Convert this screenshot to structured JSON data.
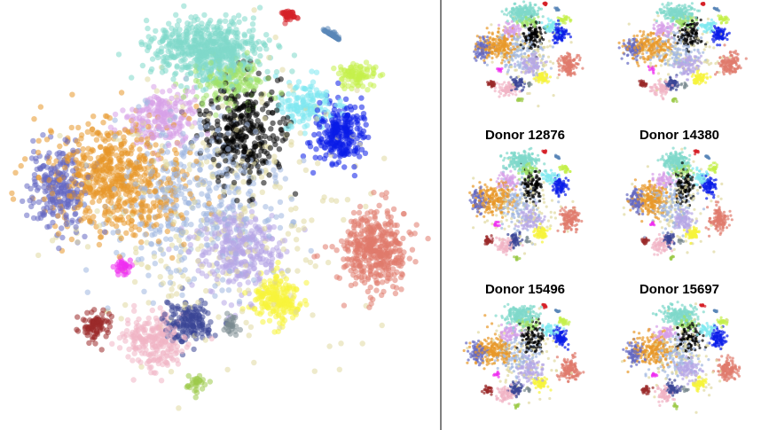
{
  "chart_data": [
    {
      "type": "scatter",
      "title": "",
      "xlabel": "",
      "ylabel": "",
      "grid": false,
      "legend": "none",
      "description_of_marks": "t-SNE style embedding of all cells, colored by cluster",
      "clusters": [
        {
          "color": "#7fd8cb",
          "center": [
            0.47,
            0.12
          ],
          "spread": [
            0.12,
            0.07
          ],
          "n": 600
        },
        {
          "color": "#e8982a",
          "center": [
            0.25,
            0.43
          ],
          "spread": [
            0.15,
            0.12
          ],
          "n": 650
        },
        {
          "color": "#e07a6c",
          "center": [
            0.86,
            0.6
          ],
          "spread": [
            0.07,
            0.09
          ],
          "n": 420
        },
        {
          "color": "#0a1ce8",
          "center": [
            0.78,
            0.32
          ],
          "spread": [
            0.05,
            0.07
          ],
          "n": 260
        },
        {
          "color": "#000000",
          "center": [
            0.55,
            0.32
          ],
          "spread": [
            0.08,
            0.12
          ],
          "n": 330
        },
        {
          "color": "#f7f43a",
          "center": [
            0.63,
            0.72
          ],
          "spread": [
            0.05,
            0.05
          ],
          "n": 200
        },
        {
          "color": "#b6a6e6",
          "center": [
            0.54,
            0.6
          ],
          "spread": [
            0.09,
            0.09
          ],
          "n": 320
        },
        {
          "color": "#f1b4c4",
          "center": [
            0.34,
            0.82
          ],
          "spread": [
            0.07,
            0.06
          ],
          "n": 220
        },
        {
          "color": "#3a4596",
          "center": [
            0.42,
            0.77
          ],
          "spread": [
            0.05,
            0.05
          ],
          "n": 170
        },
        {
          "color": "#9a2a2a",
          "center": [
            0.2,
            0.78
          ],
          "spread": [
            0.03,
            0.03
          ],
          "n": 90
        },
        {
          "color": "#d62128",
          "center": [
            0.66,
            0.03
          ],
          "spread": [
            0.015,
            0.02
          ],
          "n": 45
        },
        {
          "color": "#5a86b8",
          "center": [
            0.77,
            0.07
          ],
          "spread": [
            0.02,
            0.02
          ],
          "n": 50
        },
        {
          "color": "#ee2ef0",
          "center": [
            0.27,
            0.64
          ],
          "spread": [
            0.02,
            0.02
          ],
          "n": 35
        },
        {
          "color": "#9ccb4a",
          "center": [
            0.44,
            0.92
          ],
          "spread": [
            0.02,
            0.02
          ],
          "n": 30
        },
        {
          "color": "#c4f04a",
          "center": [
            0.82,
            0.18
          ],
          "spread": [
            0.04,
            0.03
          ],
          "n": 90
        },
        {
          "color": "#7ee8f0",
          "center": [
            0.7,
            0.25
          ],
          "spread": [
            0.06,
            0.05
          ],
          "n": 140
        },
        {
          "color": "#9fb7e0",
          "center": [
            0.45,
            0.48
          ],
          "spread": [
            0.18,
            0.18
          ],
          "n": 420
        },
        {
          "color": "#6468c2",
          "center": [
            0.12,
            0.45
          ],
          "spread": [
            0.06,
            0.09
          ],
          "n": 240
        },
        {
          "color": "#d7a0e8",
          "center": [
            0.36,
            0.28
          ],
          "spread": [
            0.08,
            0.06
          ],
          "n": 200
        },
        {
          "color": "#a0e26a",
          "center": [
            0.52,
            0.2
          ],
          "spread": [
            0.08,
            0.05
          ],
          "n": 150
        },
        {
          "color": "#7a8a90",
          "center": [
            0.52,
            0.78
          ],
          "spread": [
            0.02,
            0.02
          ],
          "n": 30
        },
        {
          "color": "#e0d8a0",
          "center": [
            0.5,
            0.5
          ],
          "spread": [
            0.3,
            0.3
          ],
          "n": 300
        }
      ]
    },
    {
      "type": "scatter",
      "title": "",
      "subplot_label": "",
      "legend": "none"
    },
    {
      "type": "scatter",
      "title": "",
      "subplot_label": "",
      "legend": "none"
    },
    {
      "type": "scatter",
      "title": "Donor 12876",
      "subplot_label": "Donor 12876",
      "legend": "none"
    },
    {
      "type": "scatter",
      "title": "Donor 14380",
      "subplot_label": "Donor 14380",
      "legend": "none"
    },
    {
      "type": "scatter",
      "title": "Donor 15496",
      "subplot_label": "Donor 15496",
      "legend": "none"
    },
    {
      "type": "scatter",
      "title": "Donor 15697",
      "subplot_label": "Donor 15697",
      "legend": "none"
    }
  ],
  "labels": {
    "donor_1": "Donor 12876",
    "donor_2": "Donor 14380",
    "donor_3": "Donor 15496",
    "donor_4": "Donor 15697"
  },
  "colors": {
    "background": "#ffffff",
    "divider": "#000000"
  }
}
